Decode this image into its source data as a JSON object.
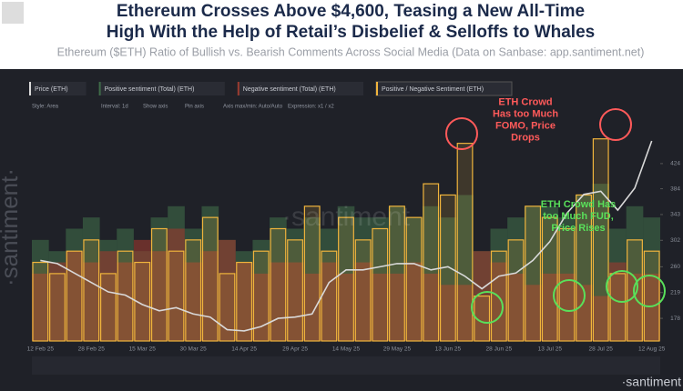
{
  "chart_data": {
    "type": "bar",
    "title": [
      "Ethereum Crosses Above $4,600, Teasing a New All-Time",
      "High With the Help of Retail’s Disbelief & Selloffs to Whales"
    ],
    "subtitle": "Ethereum ($ETH) Ratio of Bullish vs. Bearish Comments Across Social Media (Data on Sanbase: app.santiment.net)",
    "toolbar": [
      "Style: Area",
      "Interval: 1d",
      "Show axis",
      "Pin axis",
      "Axis max/min: Auto/Auto",
      "Expression: x1 / x2"
    ],
    "watermark": "·santiment·",
    "logo": "·santiment",
    "categories": [
      "12 Feb 25",
      null,
      null,
      "28 Feb 25",
      null,
      null,
      "15 Mar 25",
      null,
      null,
      "30 Mar 25",
      null,
      null,
      "14 Apr 25",
      null,
      null,
      "29 Apr 25",
      null,
      null,
      "14 May 25",
      null,
      null,
      "29 May 25",
      null,
      null,
      "13 Jun 25",
      null,
      null,
      "28 Jun 25",
      null,
      null,
      "13 Jul 25",
      null,
      null,
      "28 Jul 25",
      null,
      null,
      "12 Aug 25"
    ],
    "ylim": [
      0,
      100
    ],
    "y2lim": [
      142,
      499
    ],
    "y2ticks": [
      178,
      219,
      260,
      302,
      343,
      384,
      424
    ],
    "series": [
      {
        "name": "Price (ETH)",
        "type": "line",
        "axis": "y2",
        "color": "#d9d9d9",
        "values": [
          270,
          265,
          250,
          235,
          220,
          215,
          200,
          190,
          195,
          185,
          180,
          160,
          158,
          165,
          178,
          180,
          185,
          235,
          255,
          255,
          260,
          265,
          265,
          255,
          260,
          245,
          225,
          245,
          250,
          270,
          300,
          345,
          375,
          380,
          350,
          385,
          460
        ]
      },
      {
        "name": "Positive sentiment (Total) (ETH)",
        "type": "bar",
        "color": "#3f6b48",
        "values": [
          45,
          40,
          50,
          55,
          45,
          50,
          40,
          55,
          60,
          50,
          60,
          45,
          40,
          45,
          55,
          50,
          55,
          50,
          60,
          55,
          55,
          60,
          55,
          60,
          55,
          65,
          40,
          50,
          55,
          60,
          60,
          55,
          65,
          70,
          50,
          60,
          55
        ]
      },
      {
        "name": "Negative sentiment (Total) (ETH)",
        "type": "bar",
        "color": "#9b3b2f",
        "values": [
          30,
          35,
          40,
          35,
          40,
          35,
          45,
          40,
          50,
          35,
          40,
          45,
          35,
          30,
          35,
          35,
          30,
          35,
          30,
          35,
          30,
          30,
          35,
          30,
          25,
          25,
          40,
          35,
          30,
          25,
          30,
          30,
          25,
          20,
          35,
          30,
          30
        ]
      },
      {
        "name": "Positive / Negative Sentiment (ETH)",
        "type": "outline",
        "color": "#f0b43c",
        "values": [
          35,
          30,
          40,
          45,
          30,
          40,
          35,
          50,
          40,
          45,
          55,
          30,
          35,
          40,
          50,
          45,
          60,
          40,
          55,
          45,
          50,
          60,
          55,
          70,
          65,
          88,
          20,
          40,
          45,
          60,
          55,
          50,
          65,
          90,
          30,
          45,
          40
        ]
      }
    ],
    "annotations": [
      {
        "lines": [
          "ETH Crowd",
          "Has too Much",
          "FOMO, Price",
          "Drops"
        ],
        "color": "#ff5a5a"
      },
      {
        "lines": [
          "ETH Crowd Has",
          "too Much FUD,",
          "Price Rises"
        ],
        "color": "#59e05a"
      }
    ]
  }
}
